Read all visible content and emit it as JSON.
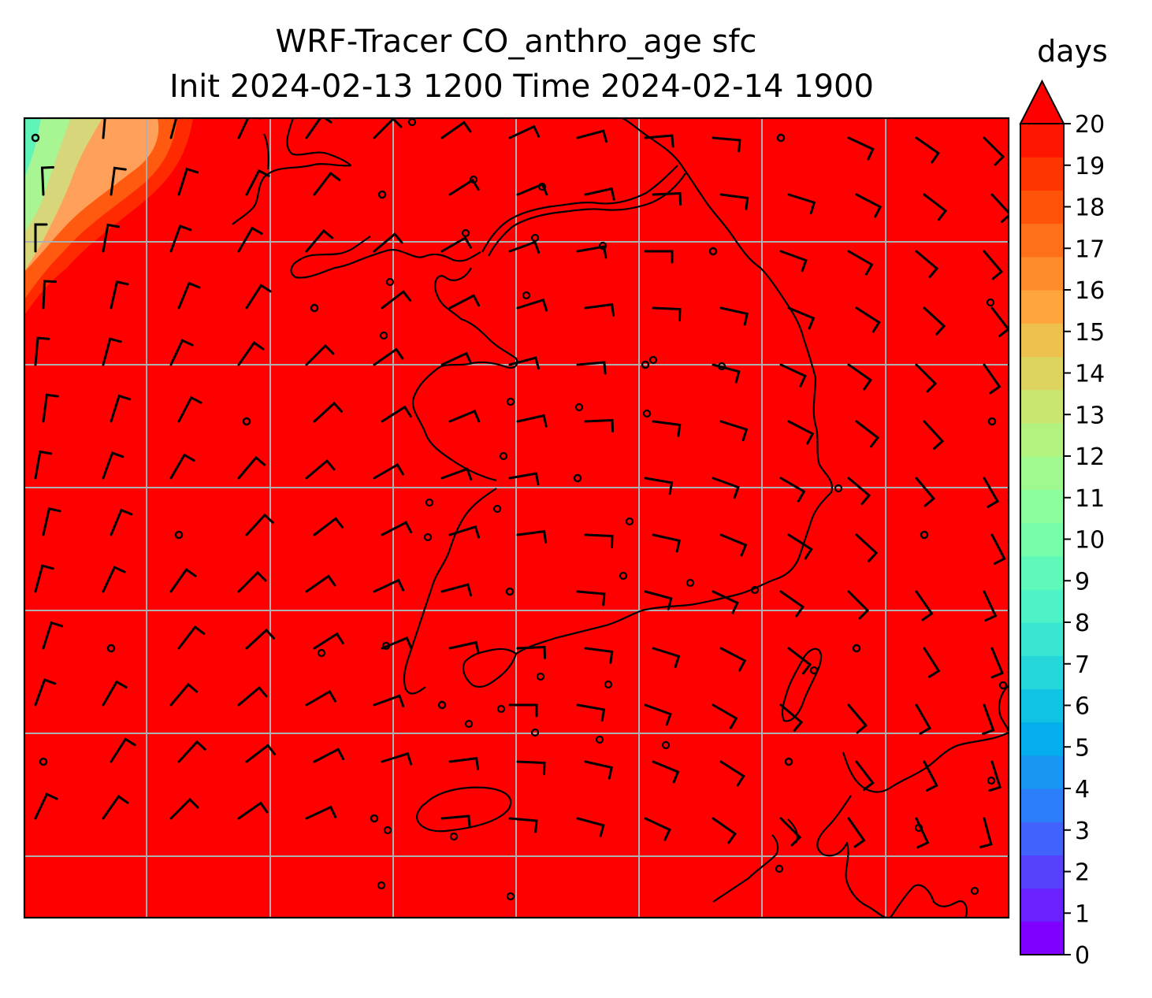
{
  "title_line1": "WRF-Tracer CO_anthro_age sfc",
  "title_line2": "Init 2024-02-13 1200 Time 2024-02-14 1900",
  "colorbar": {
    "unit": "days",
    "ticks": [
      "0",
      "1",
      "2",
      "3",
      "4",
      "5",
      "6",
      "7",
      "8",
      "9",
      "10",
      "11",
      "12",
      "13",
      "14",
      "15",
      "16",
      "17",
      "18",
      "19",
      "20"
    ],
    "colors": [
      "#7f00ff",
      "#6a21fe",
      "#5641fd",
      "#4162fb",
      "#2c7ef8",
      "#1996f3",
      "#04aeec",
      "#10c3e5",
      "#25d6db",
      "#3ae5d1",
      "#4df3c6",
      "#61f9b9",
      "#76feab",
      "#8bfe9d",
      "#a0f98f",
      "#b4f280",
      "#c8e670",
      "#dcd45f",
      "#eec04e",
      "#ffa53c",
      "#ff8c2b",
      "#ff701a",
      "#ff530a",
      "#ff3500",
      "#ff1600"
    ],
    "extend_color": "#ff0000",
    "range": [
      0,
      20
    ],
    "extend": "max"
  },
  "chart_data": {
    "type": "heatmap",
    "title": "WRF-Tracer CO_anthro_age sfc\nInit 2024-02-13 1200 Time 2024-02-14 1900",
    "variable": "CO_anthro_age",
    "level": "sfc",
    "init": "2024-02-13 1200",
    "valid": "2024-02-14 1900",
    "unit": "days",
    "colorbar_range": [
      0,
      20
    ],
    "dominant_value": ">20",
    "features": [
      "wind barbs",
      "coastlines",
      "gridlines"
    ],
    "grid": true
  }
}
